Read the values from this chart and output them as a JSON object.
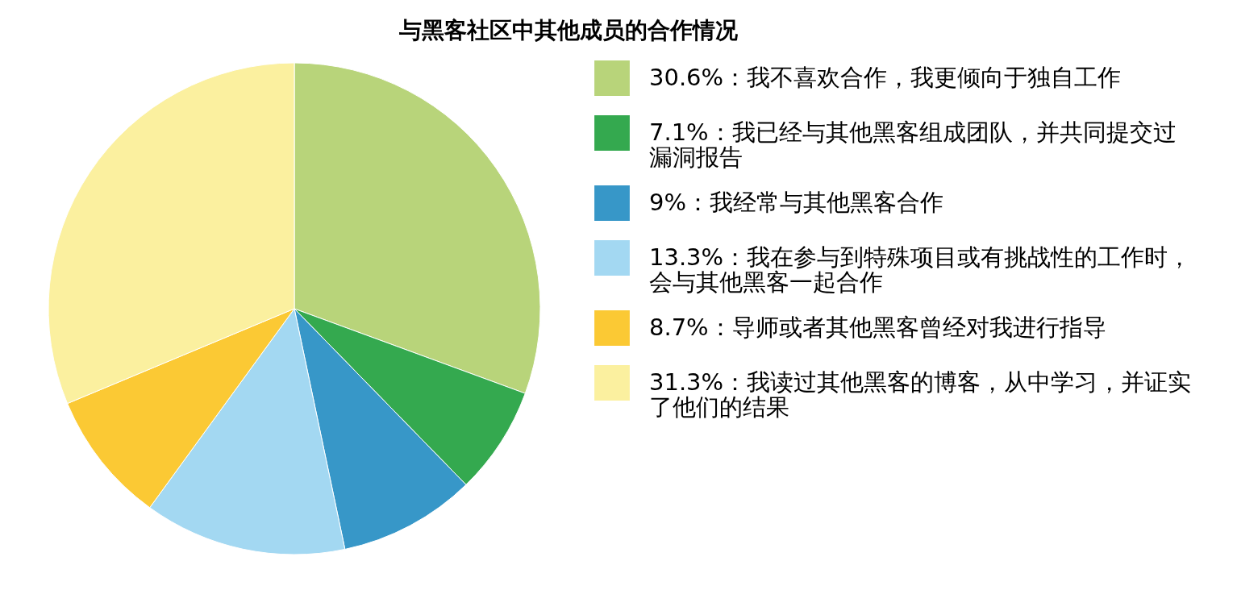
{
  "chart_data": {
    "type": "pie",
    "title": "与黑客社区中其他成员的合作情况",
    "categories": [
      "我不喜欢合作，我更倾向于独自工作",
      "我已经与其他黑客组成团队，并共同提交过漏洞报告",
      "我经常与其他黑客合作",
      "我在参与到特殊项目或有挑战性的工作时，会与其他黑客一起合作",
      "导师或者其他黑客曾经对我进行指导",
      "我读过其他黑客的博客，从中学习，并证实了他们的结果"
    ],
    "values": [
      30.6,
      7.1,
      9,
      13.3,
      8.7,
      31.3
    ],
    "value_labels": [
      "30.6%：",
      "7.1%：",
      "9%：",
      "13.3%：",
      "8.7%：",
      "31.3%："
    ],
    "colors": [
      "#b8d47a",
      "#34a94f",
      "#3797c8",
      "#a3d8f2",
      "#fbc934",
      "#fbf09f"
    ],
    "legend": "right"
  }
}
